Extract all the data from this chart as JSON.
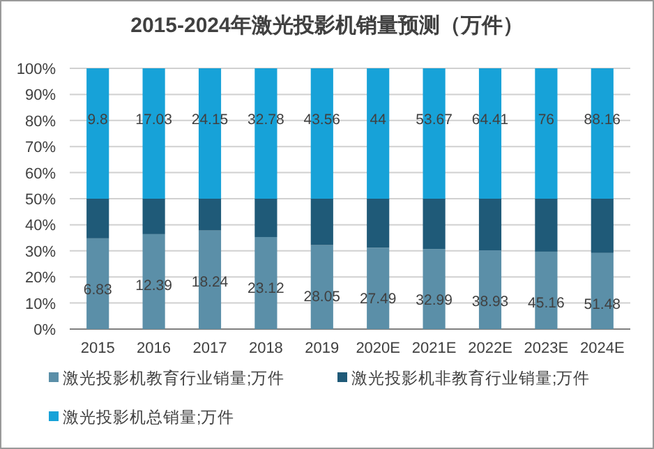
{
  "chart_data": {
    "type": "bar",
    "stacked": true,
    "title": "2015-2024年激光投影机销量预测（万件）",
    "categories": [
      "2015",
      "2016",
      "2017",
      "2018",
      "2019",
      "2020E",
      "2021E",
      "2022E",
      "2023E",
      "2024E"
    ],
    "series": [
      {
        "name": "激光投影机教育行业销量;万件",
        "color": "#5b8fa8",
        "values": [
          34.8,
          36.4,
          37.8,
          35.3,
          32.2,
          31.2,
          30.7,
          30.2,
          29.7,
          29.2
        ]
      },
      {
        "name": "激光投影机非教育行业销量;万件",
        "color": "#1f5a78",
        "values": [
          15.2,
          13.6,
          12.2,
          14.7,
          17.8,
          18.8,
          19.3,
          19.8,
          20.3,
          20.8
        ]
      },
      {
        "name": "激光投影机总销量;万件",
        "color": "#17a2d8",
        "values": [
          50,
          50,
          50,
          50,
          50,
          50,
          50,
          50,
          50,
          50
        ]
      }
    ],
    "annotations": [
      {
        "text": "6.83",
        "x": "2015",
        "y": 34.8
      },
      {
        "text": "12.39",
        "x": "2016",
        "y": 36.4
      },
      {
        "text": "18.24",
        "x": "2017",
        "y": 37.8
      },
      {
        "text": "23.12",
        "x": "2018",
        "y": 35.3
      },
      {
        "text": "28.05",
        "x": "2019",
        "y": 32.2
      },
      {
        "text": "27.49",
        "x": "2020E",
        "y": 31.2
      },
      {
        "text": "32.99",
        "x": "2021E",
        "y": 30.7
      },
      {
        "text": "38.93",
        "x": "2022E",
        "y": 30.2
      },
      {
        "text": "45.16",
        "x": "2023E",
        "y": 29.7
      },
      {
        "text": "51.48",
        "x": "2024E",
        "y": 29.2
      },
      {
        "text": "9.8",
        "x": "2015",
        "y": 100
      },
      {
        "text": "17.03",
        "x": "2016",
        "y": 100
      },
      {
        "text": "24.15",
        "x": "2017",
        "y": 100
      },
      {
        "text": "32.78",
        "x": "2018",
        "y": 100
      },
      {
        "text": "43.56",
        "x": "2019",
        "y": 100
      },
      {
        "text": "44",
        "x": "2020E",
        "y": 100
      },
      {
        "text": "53.67",
        "x": "2021E",
        "y": 100
      },
      {
        "text": "64.41",
        "x": "2022E",
        "y": 100
      },
      {
        "text": "76",
        "x": "2023E",
        "y": 100
      },
      {
        "text": "88.16",
        "x": "2024E",
        "y": 100
      }
    ],
    "ylim": [
      0,
      100
    ],
    "yticks": [
      {
        "value": 0,
        "label": "0%"
      },
      {
        "value": 10,
        "label": "10%"
      },
      {
        "value": 20,
        "label": "20%"
      },
      {
        "value": 30,
        "label": "30%"
      },
      {
        "value": 40,
        "label": "40%"
      },
      {
        "value": 50,
        "label": "50%"
      },
      {
        "value": 60,
        "label": "60%"
      },
      {
        "value": 70,
        "label": "70%"
      },
      {
        "value": 80,
        "label": "80%"
      },
      {
        "value": 90,
        "label": "90%"
      },
      {
        "value": 100,
        "label": "100%"
      }
    ],
    "grid": "y",
    "legend": "bottom"
  }
}
